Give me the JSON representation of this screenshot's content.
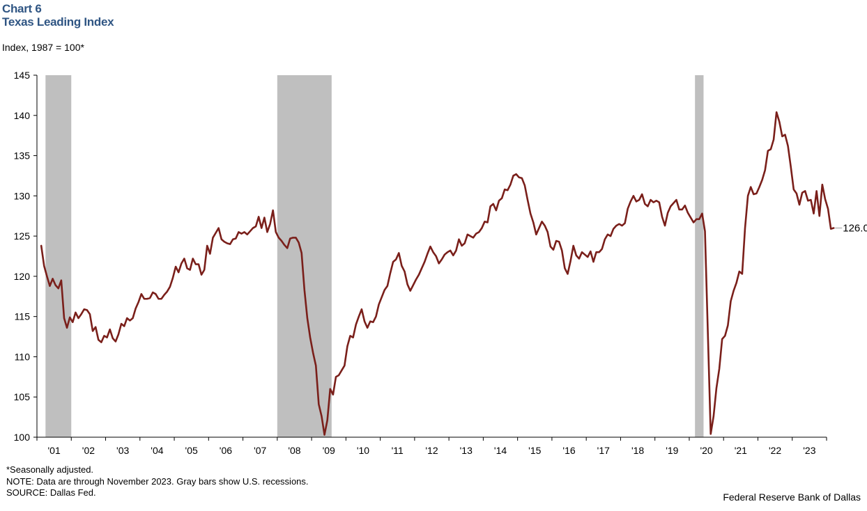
{
  "header": {
    "chart_number": "Chart 6",
    "title": "Texas Leading Index",
    "unit_label": "Index,  1987 = 100*"
  },
  "footer": {
    "note1": "*Seasonally adjusted.",
    "note2": "NOTE: Data are through November 2023. Gray bars show U.S. recessions.",
    "note3": "SOURCE: Dallas Fed.",
    "credit": "Federal Reserve Bank of Dallas"
  },
  "colors": {
    "line": "#7a1f1a",
    "recession": "#bfbfbf",
    "title": "#2f5583"
  },
  "chart_data": {
    "type": "line",
    "ylabel": "Index,  1987 = 100*",
    "ylim": [
      100,
      145
    ],
    "yticks": [
      100,
      105,
      110,
      115,
      120,
      125,
      130,
      135,
      140,
      145
    ],
    "x_range": [
      "2000-12",
      "2023-12"
    ],
    "x_tick_labels": [
      "'01",
      "'02",
      "'03",
      "'04",
      "'05",
      "'06",
      "'07",
      "'08",
      "'09",
      "'10",
      "'11",
      "'12",
      "'13",
      "'14",
      "'15",
      "'16",
      "'17",
      "'18",
      "'19",
      "'20",
      "'21",
      "'22",
      "'23"
    ],
    "recessions": [
      {
        "start": "2001-03",
        "end": "2001-11"
      },
      {
        "start": "2007-12",
        "end": "2009-06"
      },
      {
        "start": "2020-02",
        "end": "2020-04"
      }
    ],
    "end_label": "126.0",
    "grid": false,
    "legend": "none",
    "series": [
      {
        "start": "2001-01",
        "values": [
          123.8,
          121.3,
          120.0,
          118.8,
          119.7,
          118.9,
          118.5,
          119.5,
          114.8,
          113.6,
          114.9,
          114.3,
          115.5,
          114.8,
          115.3,
          115.9,
          115.8,
          115.3,
          113.2,
          113.7,
          112.1,
          111.8,
          112.6,
          112.4,
          113.4,
          112.3,
          111.9,
          112.8,
          114.1,
          113.8,
          114.8,
          114.5,
          114.8,
          116.0,
          116.8,
          117.8,
          117.2,
          117.2,
          117.3,
          118.0,
          117.8,
          117.2,
          117.2,
          117.7,
          118.1,
          118.7,
          119.8,
          121.2,
          120.5,
          121.6,
          122.2,
          121.0,
          120.8,
          122.2,
          121.5,
          121.5,
          120.2,
          120.8,
          123.8,
          122.8,
          124.8,
          125.4,
          126.0,
          124.6,
          124.3,
          124.1,
          124.0,
          124.6,
          124.7,
          125.5,
          125.3,
          125.5,
          125.2,
          125.6,
          126.0,
          126.2,
          127.4,
          126.0,
          127.3,
          125.5,
          126.5,
          128.2,
          125.5,
          124.8,
          124.4,
          123.9,
          123.5,
          124.7,
          124.8,
          124.8,
          124.2,
          122.9,
          118.3,
          114.8,
          112.4,
          110.5,
          108.9,
          104.1,
          102.6,
          100.3,
          102.1,
          106.0,
          105.3,
          107.5,
          107.7,
          108.3,
          108.9,
          111.3,
          112.6,
          112.4,
          114.0,
          115.0,
          115.9,
          114.4,
          113.6,
          114.4,
          114.3,
          115.0,
          116.5,
          117.4,
          118.3,
          118.8,
          120.4,
          121.8,
          122.1,
          122.9,
          121.3,
          120.6,
          119.0,
          118.2,
          118.9,
          119.6,
          120.2,
          121.0,
          121.8,
          122.8,
          123.7,
          123.0,
          122.5,
          121.6,
          122.1,
          122.7,
          123.0,
          123.2,
          122.6,
          123.2,
          124.6,
          123.8,
          124.1,
          125.2,
          125.0,
          124.8,
          125.3,
          125.5,
          126.0,
          126.8,
          126.7,
          128.7,
          129.0,
          128.2,
          129.4,
          129.7,
          130.8,
          130.7,
          131.4,
          132.5,
          132.7,
          132.3,
          132.2,
          131.3,
          129.5,
          127.8,
          126.7,
          125.2,
          126.0,
          126.8,
          126.3,
          125.5,
          123.7,
          123.3,
          124.4,
          124.3,
          123.2,
          121.0,
          120.3,
          121.9,
          123.8,
          122.6,
          122.2,
          123.0,
          122.7,
          122.4,
          123.1,
          121.8,
          123.0,
          123.0,
          123.4,
          124.6,
          125.2,
          125.0,
          125.9,
          126.3,
          126.5,
          126.3,
          126.6,
          128.4,
          129.3,
          130.0,
          129.3,
          129.5,
          130.2,
          129.0,
          128.7,
          129.5,
          129.2,
          129.4,
          129.2,
          127.4,
          126.3,
          127.9,
          128.7,
          129.1,
          129.5,
          128.3,
          128.3,
          128.8,
          127.9,
          127.3,
          126.7,
          127.1,
          127.1,
          127.8,
          125.6,
          113.0,
          100.4,
          102.6,
          106.1,
          108.5,
          112.2,
          112.6,
          113.9,
          116.9,
          118.2,
          119.2,
          120.6,
          120.3,
          126.0,
          130.0,
          131.1,
          130.2,
          130.3,
          131.1,
          132.0,
          133.2,
          135.6,
          135.8,
          137.0,
          140.4,
          139.2,
          137.4,
          137.6,
          136.2,
          133.6,
          130.8,
          130.3,
          128.9,
          130.4,
          130.6,
          129.4,
          129.5,
          127.8,
          130.6,
          127.5,
          131.4,
          129.6,
          128.4,
          125.9,
          126.0
        ]
      }
    ]
  }
}
